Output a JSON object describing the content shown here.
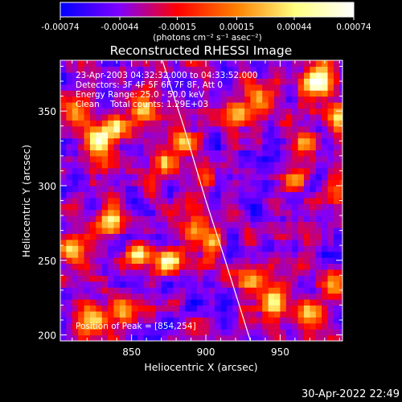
{
  "colors": {
    "background": "#000000",
    "foreground": "#ffffff",
    "colormap_stops": [
      "#0000ff",
      "#7f00ff",
      "#ff0000",
      "#ff8000",
      "#ffff80",
      "#ffffff"
    ]
  },
  "chart_data": {
    "type": "heatmap",
    "title": "Reconstructed RHESSI Image",
    "xlabel": "Heliocentric X (arcsec)",
    "ylabel": "Heliocentric Y (arcsec)",
    "xlim": [
      802,
      992
    ],
    "ylim": [
      196,
      384
    ],
    "xticks": [
      850,
      900,
      950
    ],
    "yticks": [
      200,
      250,
      300,
      350
    ],
    "colorbar": {
      "min": -0.00074,
      "max": 0.00074,
      "ticks": [
        "-0.00074",
        "-0.00044",
        "-0.00015",
        "0.00015",
        "0.00044",
        "0.00074"
      ],
      "unit_label": "(photons cm⁻² s⁻¹ asec⁻²)"
    },
    "annotations": [
      "23-Apr-2003 04:32:32.000 to 04:33:52.000",
      "Detectors: 3F 4F 5F 6F 7F 8F, Att 0",
      "Energy Range: 25.0 - 50.0 keV",
      "Clean    Total counts: 1.29E+03"
    ],
    "peak_label": "Position of Peak = [854,254]",
    "peak_position": [
      854,
      254
    ],
    "limb": [
      [
        870,
        386
      ],
      [
        885,
        340
      ],
      [
        900,
        290
      ],
      [
        913,
        250
      ],
      [
        924,
        215
      ],
      [
        930,
        196
      ]
    ],
    "hot_spots": [
      {
        "x": 854,
        "y": 254,
        "v": 0.00074,
        "r": 7
      },
      {
        "x": 838,
        "y": 276,
        "v": 0.00052,
        "r": 9
      },
      {
        "x": 828,
        "y": 330,
        "v": 0.00046,
        "r": 10
      },
      {
        "x": 840,
        "y": 340,
        "v": 0.0004,
        "r": 8
      },
      {
        "x": 858,
        "y": 352,
        "v": 0.00036,
        "r": 9
      },
      {
        "x": 885,
        "y": 330,
        "v": 0.00042,
        "r": 8
      },
      {
        "x": 872,
        "y": 315,
        "v": 0.0003,
        "r": 7
      },
      {
        "x": 920,
        "y": 348,
        "v": 0.00048,
        "r": 9
      },
      {
        "x": 935,
        "y": 360,
        "v": 0.00034,
        "r": 8
      },
      {
        "x": 975,
        "y": 370,
        "v": 0.00062,
        "r": 10
      },
      {
        "x": 965,
        "y": 330,
        "v": 0.0003,
        "r": 8
      },
      {
        "x": 960,
        "y": 303,
        "v": 0.00032,
        "r": 7
      },
      {
        "x": 990,
        "y": 345,
        "v": 0.0004,
        "r": 9
      },
      {
        "x": 875,
        "y": 250,
        "v": 0.00048,
        "r": 8
      },
      {
        "x": 890,
        "y": 270,
        "v": 0.0004,
        "r": 8
      },
      {
        "x": 905,
        "y": 262,
        "v": 0.00034,
        "r": 7
      },
      {
        "x": 810,
        "y": 258,
        "v": 0.00032,
        "r": 9
      },
      {
        "x": 812,
        "y": 350,
        "v": 0.00034,
        "r": 9
      },
      {
        "x": 930,
        "y": 237,
        "v": 0.00038,
        "r": 9
      },
      {
        "x": 945,
        "y": 222,
        "v": 0.00036,
        "r": 8
      },
      {
        "x": 985,
        "y": 235,
        "v": 0.00034,
        "r": 8
      },
      {
        "x": 825,
        "y": 210,
        "v": 0.0003,
        "r": 10
      },
      {
        "x": 845,
        "y": 215,
        "v": 0.00026,
        "r": 8
      },
      {
        "x": 970,
        "y": 215,
        "v": 0.0003,
        "r": 9
      },
      {
        "x": 990,
        "y": 290,
        "v": 0.00026,
        "r": 8
      },
      {
        "x": 900,
        "y": 305,
        "v": 0.00024,
        "r": 7
      }
    ]
  },
  "footer": {
    "timestamp": "30-Apr-2022 22:49"
  }
}
